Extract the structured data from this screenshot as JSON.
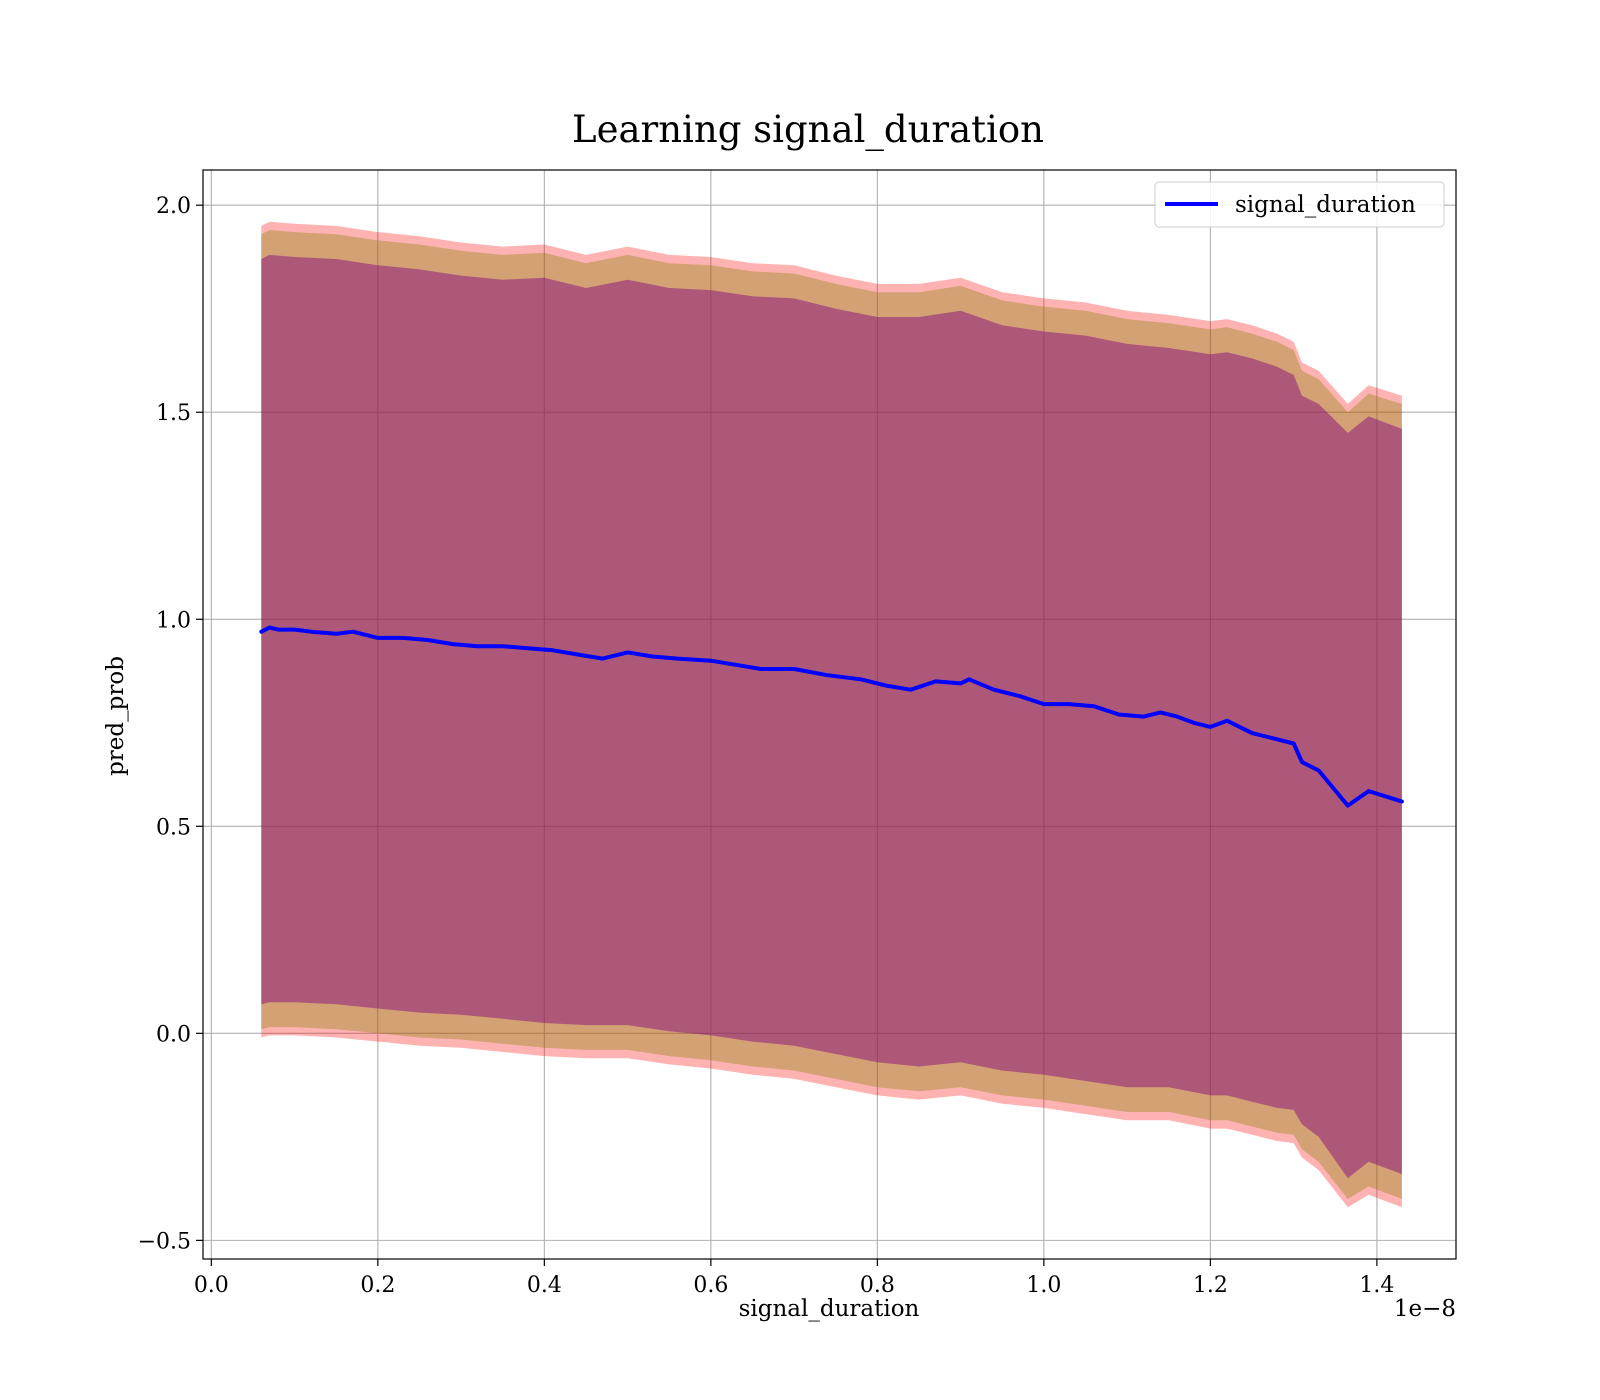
{
  "chart_data": {
    "type": "line",
    "title": "Learning signal_duration",
    "xlabel": "signal_duration",
    "ylabel": "pred_prob",
    "x_offset_text": "1e−8",
    "x_scale_multiplier": 1e-08,
    "xlim": [
      -0.01,
      1.495
    ],
    "ylim": [
      -0.545,
      2.085
    ],
    "xticks": [
      0.0,
      0.2,
      0.4,
      0.6,
      0.8,
      1.0,
      1.2,
      1.4
    ],
    "xtick_labels": [
      "0.0",
      "0.2",
      "0.4",
      "0.6",
      "0.8",
      "1.0",
      "1.2",
      "1.4"
    ],
    "yticks": [
      -0.5,
      0.0,
      0.5,
      1.0,
      1.5,
      2.0
    ],
    "ytick_labels": [
      "−0.5",
      "0.0",
      "0.5",
      "1.0",
      "1.5",
      "2.0"
    ],
    "grid": true,
    "legend_position": "top-right",
    "colors": {
      "line": "#0000ff",
      "outer_band": "#ff0000",
      "middle_band": "#808000",
      "inner_band": "#800080",
      "grid": "#b0b0b0"
    },
    "series": [
      {
        "name": "signal_duration",
        "x": [
          0.06,
          0.07,
          0.08,
          0.1,
          0.12,
          0.15,
          0.17,
          0.2,
          0.23,
          0.26,
          0.29,
          0.32,
          0.35,
          0.38,
          0.41,
          0.44,
          0.47,
          0.5,
          0.53,
          0.56,
          0.6,
          0.63,
          0.66,
          0.7,
          0.74,
          0.78,
          0.81,
          0.84,
          0.87,
          0.9,
          0.91,
          0.94,
          0.97,
          1.0,
          1.03,
          1.06,
          1.09,
          1.12,
          1.14,
          1.16,
          1.18,
          1.2,
          1.22,
          1.25,
          1.28,
          1.3,
          1.31,
          1.33,
          1.365,
          1.39,
          1.43
        ],
        "y": [
          0.97,
          0.98,
          0.975,
          0.975,
          0.97,
          0.965,
          0.97,
          0.955,
          0.955,
          0.95,
          0.94,
          0.935,
          0.935,
          0.93,
          0.925,
          0.915,
          0.905,
          0.92,
          0.91,
          0.905,
          0.9,
          0.89,
          0.88,
          0.88,
          0.865,
          0.855,
          0.84,
          0.83,
          0.85,
          0.845,
          0.855,
          0.83,
          0.815,
          0.795,
          0.795,
          0.79,
          0.77,
          0.765,
          0.775,
          0.765,
          0.75,
          0.74,
          0.755,
          0.725,
          0.71,
          0.7,
          0.655,
          0.635,
          0.55,
          0.585,
          0.56
        ]
      }
    ],
    "bands": [
      {
        "color": "#ff0000",
        "opacity": 0.3,
        "x": [
          0.06,
          0.07,
          0.1,
          0.15,
          0.2,
          0.25,
          0.3,
          0.35,
          0.4,
          0.45,
          0.5,
          0.55,
          0.6,
          0.65,
          0.7,
          0.75,
          0.8,
          0.85,
          0.9,
          0.95,
          1.0,
          1.05,
          1.1,
          1.15,
          1.2,
          1.22,
          1.25,
          1.28,
          1.3,
          1.31,
          1.33,
          1.365,
          1.39,
          1.43
        ],
        "upper": [
          1.95,
          1.96,
          1.955,
          1.95,
          1.935,
          1.925,
          1.91,
          1.9,
          1.905,
          1.88,
          1.9,
          1.88,
          1.875,
          1.86,
          1.855,
          1.83,
          1.81,
          1.81,
          1.825,
          1.79,
          1.775,
          1.765,
          1.745,
          1.735,
          1.72,
          1.725,
          1.71,
          1.69,
          1.67,
          1.62,
          1.6,
          1.52,
          1.565,
          1.54
        ],
        "lower": [
          -0.01,
          -0.005,
          -0.005,
          -0.01,
          -0.02,
          -0.03,
          -0.035,
          -0.045,
          -0.055,
          -0.06,
          -0.06,
          -0.075,
          -0.085,
          -0.1,
          -0.11,
          -0.13,
          -0.15,
          -0.16,
          -0.15,
          -0.17,
          -0.18,
          -0.195,
          -0.21,
          -0.21,
          -0.23,
          -0.23,
          -0.245,
          -0.26,
          -0.265,
          -0.3,
          -0.33,
          -0.42,
          -0.39,
          -0.42
        ]
      },
      {
        "color": "#808000",
        "opacity": 0.35,
        "x": [
          0.06,
          0.07,
          0.1,
          0.15,
          0.2,
          0.25,
          0.3,
          0.35,
          0.4,
          0.45,
          0.5,
          0.55,
          0.6,
          0.65,
          0.7,
          0.75,
          0.8,
          0.85,
          0.9,
          0.95,
          1.0,
          1.05,
          1.1,
          1.15,
          1.2,
          1.22,
          1.25,
          1.28,
          1.3,
          1.31,
          1.33,
          1.365,
          1.39,
          1.43
        ],
        "upper": [
          1.93,
          1.94,
          1.935,
          1.93,
          1.915,
          1.905,
          1.89,
          1.88,
          1.885,
          1.86,
          1.88,
          1.86,
          1.855,
          1.84,
          1.835,
          1.81,
          1.79,
          1.79,
          1.805,
          1.77,
          1.755,
          1.745,
          1.725,
          1.715,
          1.7,
          1.705,
          1.69,
          1.67,
          1.65,
          1.6,
          1.58,
          1.5,
          1.545,
          1.52
        ],
        "lower": [
          0.01,
          0.015,
          0.015,
          0.01,
          0.0,
          -0.01,
          -0.015,
          -0.025,
          -0.035,
          -0.04,
          -0.04,
          -0.055,
          -0.065,
          -0.08,
          -0.09,
          -0.11,
          -0.13,
          -0.14,
          -0.13,
          -0.15,
          -0.16,
          -0.175,
          -0.19,
          -0.19,
          -0.21,
          -0.21,
          -0.225,
          -0.24,
          -0.245,
          -0.28,
          -0.31,
          -0.4,
          -0.37,
          -0.4
        ]
      },
      {
        "color": "#800080",
        "opacity": 0.45,
        "x": [
          0.06,
          0.07,
          0.1,
          0.15,
          0.2,
          0.25,
          0.3,
          0.35,
          0.4,
          0.45,
          0.5,
          0.55,
          0.6,
          0.65,
          0.7,
          0.75,
          0.8,
          0.85,
          0.9,
          0.95,
          1.0,
          1.05,
          1.1,
          1.15,
          1.2,
          1.22,
          1.25,
          1.28,
          1.3,
          1.31,
          1.33,
          1.365,
          1.39,
          1.43
        ],
        "upper": [
          1.87,
          1.88,
          1.875,
          1.87,
          1.855,
          1.845,
          1.83,
          1.82,
          1.825,
          1.8,
          1.82,
          1.8,
          1.795,
          1.78,
          1.775,
          1.75,
          1.73,
          1.73,
          1.745,
          1.71,
          1.695,
          1.685,
          1.665,
          1.655,
          1.64,
          1.645,
          1.63,
          1.61,
          1.59,
          1.54,
          1.52,
          1.45,
          1.49,
          1.46
        ],
        "lower": [
          0.07,
          0.075,
          0.075,
          0.07,
          0.06,
          0.05,
          0.045,
          0.035,
          0.025,
          0.02,
          0.02,
          0.005,
          -0.005,
          -0.02,
          -0.03,
          -0.05,
          -0.07,
          -0.08,
          -0.07,
          -0.09,
          -0.1,
          -0.115,
          -0.13,
          -0.13,
          -0.15,
          -0.15,
          -0.165,
          -0.18,
          -0.185,
          -0.22,
          -0.25,
          -0.35,
          -0.31,
          -0.34
        ]
      }
    ]
  }
}
